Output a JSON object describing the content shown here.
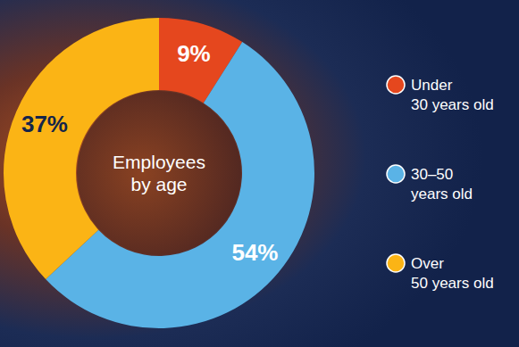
{
  "chart_data": {
    "type": "donut",
    "title": "Employees by age",
    "categories": [
      "Under 30 years old",
      "30–50 years old",
      "Over 50 years old"
    ],
    "values": [
      9,
      54,
      37
    ],
    "value_labels": [
      "9%",
      "54%",
      "37%"
    ],
    "colors": [
      "#e5471e",
      "#5ab3e6",
      "#fbb415"
    ],
    "data_labels": true,
    "legend": "right"
  }
}
